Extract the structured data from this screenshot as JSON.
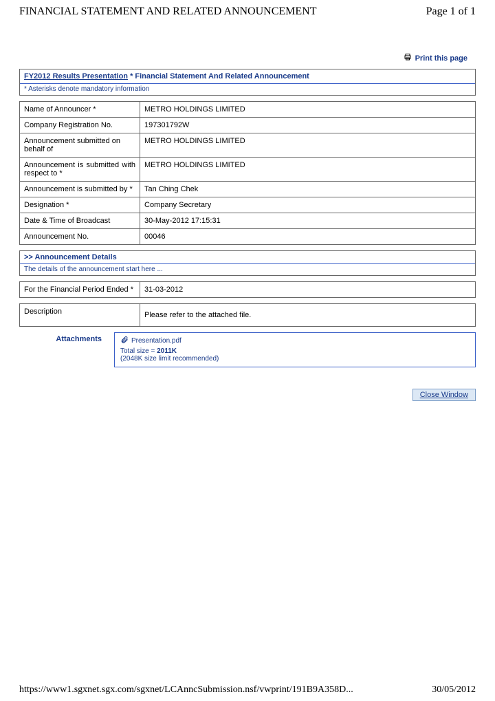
{
  "header": {
    "title": "FINANCIAL STATEMENT AND RELATED ANNOUNCEMENT",
    "page_indicator": "Page 1 of 1"
  },
  "print_link": "Print this page",
  "section1": {
    "title_link": "FY2012 Results Presentation",
    "title_rest": " * Financial Statement And Related Announcement",
    "note": "* Asterisks denote mandatory information"
  },
  "info_table": {
    "rows": [
      {
        "label": "Name of Announcer *",
        "value": "METRO HOLDINGS LIMITED"
      },
      {
        "label": "Company Registration No.",
        "value": "197301792W"
      },
      {
        "label": "Announcement submitted on behalf of",
        "value": "METRO HOLDINGS LIMITED"
      },
      {
        "label": "Announcement is submitted with respect to *",
        "value": "METRO HOLDINGS LIMITED",
        "justify": true
      },
      {
        "label": "Announcement is submitted by *",
        "value": "Tan Ching Chek"
      },
      {
        "label": "Designation *",
        "value": "Company Secretary"
      },
      {
        "label": "Date & Time of Broadcast",
        "value": "30-May-2012 17:15:31"
      },
      {
        "label": "Announcement No.",
        "value": "00046"
      }
    ]
  },
  "details": {
    "title": ">> Announcement Details",
    "note": "The details of the announcement start here ..."
  },
  "period_table": {
    "label": "For the Financial Period Ended *",
    "value": "31-03-2012"
  },
  "desc_table": {
    "label": "Description",
    "value": "Please refer to the attached file."
  },
  "attachments": {
    "label": "Attachments",
    "file": "Presentation.pdf",
    "size_prefix": "Total size = ",
    "size": "2011K",
    "limit": "(2048K size limit recommended)"
  },
  "close_button": "Close Window",
  "footer": {
    "url": "https://www1.sgxnet.sgx.com/sgxnet/LCAnncSubmission.nsf/vwprint/191B9A358D...",
    "date": "30/05/2012"
  },
  "colors": {
    "link_blue": "#1a3b8a",
    "border_gray": "#666666",
    "border_blue": "#3a5fc8",
    "btn_bg": "#dce8f5",
    "btn_border": "#7a9cc6"
  }
}
